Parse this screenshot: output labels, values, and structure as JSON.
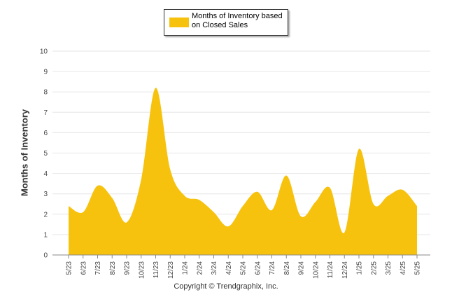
{
  "chart_data": {
    "type": "area",
    "x": [
      "5/23",
      "6/23",
      "7/23",
      "8/23",
      "9/23",
      "10/23",
      "11/23",
      "12/23",
      "1/24",
      "2/24",
      "3/24",
      "4/24",
      "5/24",
      "6/24",
      "7/24",
      "8/24",
      "9/24",
      "10/24",
      "11/24",
      "12/24",
      "1/25",
      "2/25",
      "3/25",
      "4/25",
      "5/25"
    ],
    "series": [
      {
        "name": "Months of Inventory based on Closed Sales",
        "values": [
          2.4,
          2.1,
          3.4,
          2.8,
          1.6,
          3.7,
          8.2,
          4.2,
          2.9,
          2.7,
          2.1,
          1.4,
          2.4,
          3.1,
          2.2,
          3.9,
          1.9,
          2.6,
          3.3,
          1.1,
          5.2,
          2.5,
          2.9,
          3.2,
          2.4
        ]
      }
    ],
    "xlabel": "",
    "ylabel": "Months of Inventory",
    "ylim": [
      0,
      10
    ],
    "yticks": [
      0,
      1,
      2,
      3,
      4,
      5,
      6,
      7,
      8,
      9,
      10
    ],
    "grid": true,
    "legend": "top-center",
    "colors": {
      "fill": "#f7c20d",
      "grid": "#e6e6e6",
      "axis": "#888888"
    }
  },
  "legend": {
    "label": "Months of Inventory based\non Closed Sales"
  },
  "footer": {
    "copyright": "Copyright © Trendgraphix, Inc."
  }
}
